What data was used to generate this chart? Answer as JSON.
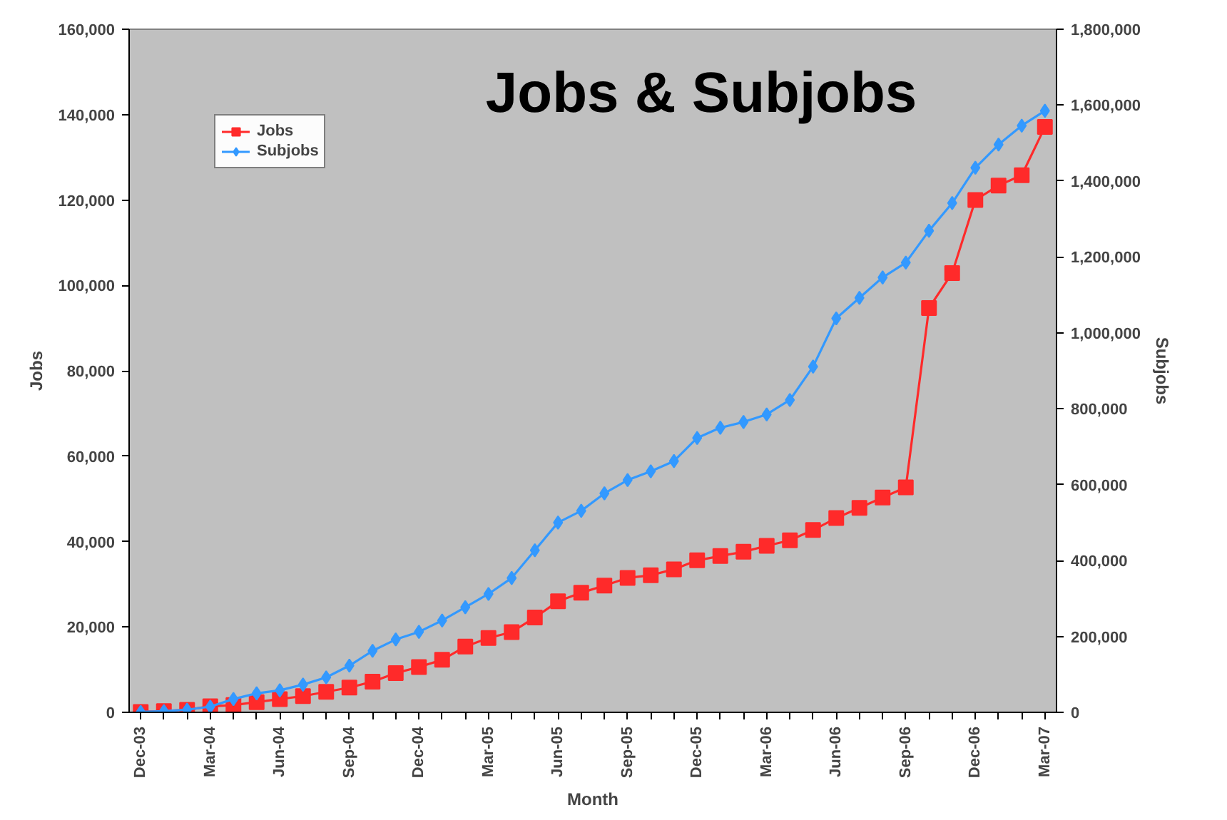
{
  "chart_data": {
    "type": "line",
    "title": "Jobs & Subjobs",
    "xlabel": "Month",
    "ylabel": "Jobs",
    "y2label": "Subjobs",
    "categories": [
      "Dec-03",
      null,
      null,
      "Mar-04",
      null,
      null,
      "Jun-04",
      null,
      null,
      "Sep-04",
      null,
      null,
      "Dec-04",
      null,
      null,
      "Mar-05",
      null,
      null,
      "Jun-05",
      null,
      null,
      "Sep-05",
      null,
      null,
      "Dec-05",
      null,
      null,
      "Mar-06",
      null,
      null,
      "Jun-06",
      null,
      null,
      "Sep-06",
      null,
      null,
      "Dec-06",
      null,
      null,
      "Mar-07"
    ],
    "series": [
      {
        "name": "Jobs",
        "color": "#ff2a2a",
        "marker": "square",
        "values": [
          100,
          300,
          600,
          1400,
          1700,
          2400,
          3100,
          3800,
          4800,
          5800,
          7200,
          9200,
          10600,
          12300,
          15400,
          17400,
          18800,
          22200,
          26000,
          28000,
          29700,
          31500,
          32100,
          33500,
          35600,
          36600,
          37600,
          39000,
          40300,
          42700,
          45500,
          47900,
          50300,
          52700,
          94700,
          102900,
          120000,
          123400,
          125800,
          137100
        ]
      },
      {
        "name": "Subjobs",
        "color": "#3399ff",
        "marker": "diamond",
        "axis": "y2",
        "values": [
          1000,
          3000,
          7000,
          15000,
          35000,
          50000,
          58000,
          73000,
          92000,
          123000,
          162000,
          192000,
          212000,
          242000,
          277000,
          312000,
          354000,
          427000,
          500000,
          531000,
          577000,
          612000,
          635000,
          662000,
          723000,
          750000,
          765000,
          785000,
          823000,
          911000,
          1038000,
          1092000,
          1146000,
          1185000,
          1269000,
          1342000,
          1435000,
          1496000,
          1546000,
          1585000
        ]
      }
    ],
    "ylim": [
      0,
      160000
    ],
    "yticks": [
      0,
      {
        "value": 20000,
        "label": "20,000"
      },
      {
        "value": 40000,
        "label": "40,000"
      },
      {
        "value": 60000,
        "label": "60,000"
      },
      {
        "value": 80000,
        "label": "80,000"
      },
      {
        "value": 100000,
        "label": "100,000"
      },
      {
        "value": 120000,
        "label": "120,000"
      },
      {
        "value": 140000,
        "label": "140,000"
      },
      {
        "value": 160000,
        "label": "160,000"
      }
    ],
    "y2lim": [
      0,
      1800000
    ],
    "y2ticks": [
      0,
      {
        "value": 200000,
        "label": "200,000"
      },
      {
        "value": 400000,
        "label": "400,000"
      },
      {
        "value": 600000,
        "label": "600,000"
      },
      {
        "value": 800000,
        "label": "800,000"
      },
      {
        "value": 1000000,
        "label": "1,000,000"
      },
      {
        "value": 1200000,
        "label": "1,200,000"
      },
      {
        "value": 1400000,
        "label": "1,400,000"
      },
      {
        "value": 1600000,
        "label": "1,600,000"
      },
      {
        "value": 1800000,
        "label": "1,800,000"
      }
    ],
    "grid": false,
    "legend": "top left",
    "line_style": "solid"
  }
}
